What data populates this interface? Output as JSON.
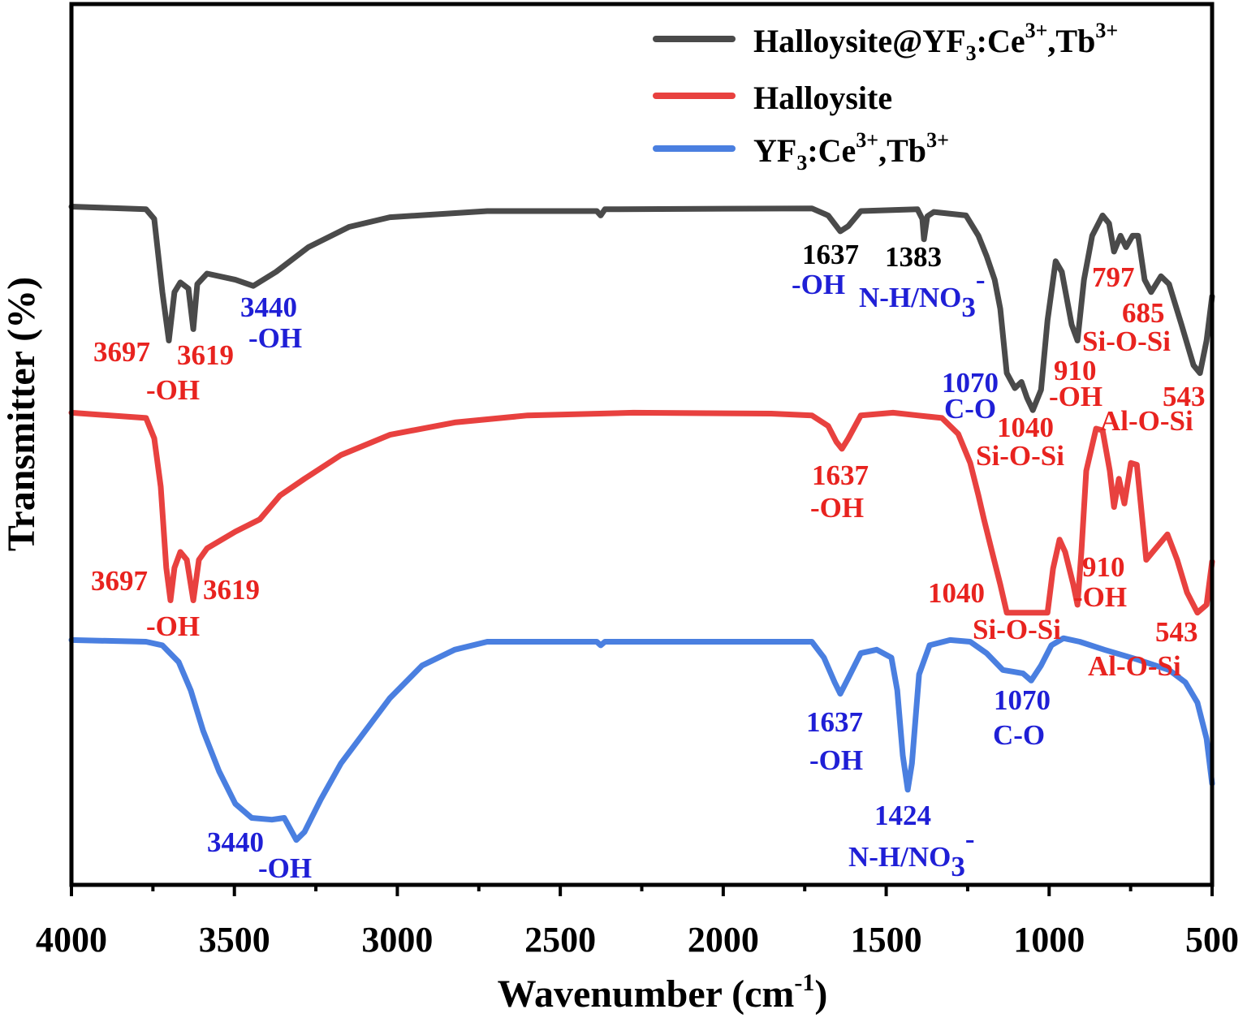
{
  "chart_data": {
    "type": "line",
    "title": "",
    "xlabel_parts": [
      "Wavenumber (cm",
      "-1",
      ")"
    ],
    "ylabel": "Transmitter (%)",
    "xlim": [
      4000,
      500
    ],
    "x_reversed": true,
    "ylim": [
      0,
      100
    ],
    "y_ticks_shown": false,
    "grid": false,
    "legend_position": "top-right",
    "x_ticks": [
      4000,
      3500,
      3000,
      2500,
      2000,
      1500,
      1000,
      500
    ],
    "x_tick_labels": [
      "4000",
      "3500",
      "3000",
      "2500",
      "2000",
      "1500",
      "1000",
      "500"
    ],
    "series": [
      {
        "name_parts": [
          "Halloysite@YF",
          "3",
          ":Ce",
          "3+",
          ",Tb",
          "3+"
        ],
        "color": "#4a4a4a",
        "points": [
          [
            4000,
            77.0
          ],
          [
            3771,
            76.7
          ],
          [
            3746,
            75.6
          ],
          [
            3721,
            67.3
          ],
          [
            3701,
            61.8
          ],
          [
            3684,
            67.3
          ],
          [
            3666,
            68.4
          ],
          [
            3641,
            67.7
          ],
          [
            3626,
            63.1
          ],
          [
            3614,
            68.2
          ],
          [
            3584,
            69.4
          ],
          [
            3497,
            68.7
          ],
          [
            3442,
            68.0
          ],
          [
            3372,
            69.6
          ],
          [
            3273,
            72.4
          ],
          [
            3148,
            74.7
          ],
          [
            3023,
            75.8
          ],
          [
            2724,
            76.5
          ],
          [
            2388,
            76.5
          ],
          [
            2376,
            76.0
          ],
          [
            2363,
            76.7
          ],
          [
            1728,
            76.8
          ],
          [
            1678,
            76.0
          ],
          [
            1641,
            74.2
          ],
          [
            1616,
            74.8
          ],
          [
            1578,
            76.5
          ],
          [
            1404,
            76.7
          ],
          [
            1389,
            75.6
          ],
          [
            1384,
            73.3
          ],
          [
            1374,
            75.9
          ],
          [
            1354,
            76.4
          ],
          [
            1255,
            76.0
          ],
          [
            1217,
            73.7
          ],
          [
            1192,
            71.4
          ],
          [
            1167,
            68.7
          ],
          [
            1150,
            65.4
          ],
          [
            1130,
            58.1
          ],
          [
            1105,
            56.4
          ],
          [
            1085,
            57.1
          ],
          [
            1068,
            55.3
          ],
          [
            1050,
            53.9
          ],
          [
            1025,
            56.2
          ],
          [
            1005,
            64.1
          ],
          [
            980,
            70.8
          ],
          [
            961,
            69.6
          ],
          [
            931,
            63.6
          ],
          [
            913,
            61.8
          ],
          [
            893,
            68.7
          ],
          [
            868,
            73.7
          ],
          [
            836,
            76.0
          ],
          [
            816,
            75.1
          ],
          [
            801,
            71.9
          ],
          [
            781,
            73.7
          ],
          [
            764,
            72.4
          ],
          [
            744,
            73.7
          ],
          [
            727,
            73.7
          ],
          [
            707,
            68.7
          ],
          [
            687,
            67.3
          ],
          [
            657,
            69.1
          ],
          [
            632,
            68.2
          ],
          [
            594,
            63.6
          ],
          [
            557,
            59.0
          ],
          [
            537,
            58.1
          ],
          [
            517,
            61.8
          ],
          [
            500,
            66.8
          ]
        ]
      },
      {
        "name_parts": [
          "Halloysite",
          "",
          "",
          "",
          "",
          ""
        ],
        "color": "#e8413f",
        "points": [
          [
            4000,
            53.6
          ],
          [
            3771,
            53.0
          ],
          [
            3746,
            50.7
          ],
          [
            3726,
            45.2
          ],
          [
            3709,
            36.0
          ],
          [
            3696,
            32.3
          ],
          [
            3684,
            36.0
          ],
          [
            3666,
            37.8
          ],
          [
            3646,
            36.9
          ],
          [
            3626,
            32.3
          ],
          [
            3609,
            36.9
          ],
          [
            3584,
            38.2
          ],
          [
            3497,
            40.1
          ],
          [
            3422,
            41.5
          ],
          [
            3360,
            44.2
          ],
          [
            3285,
            46.1
          ],
          [
            3173,
            48.8
          ],
          [
            3023,
            51.1
          ],
          [
            2824,
            52.5
          ],
          [
            2600,
            53.3
          ],
          [
            2276,
            53.6
          ],
          [
            1853,
            53.5
          ],
          [
            1728,
            53.3
          ],
          [
            1678,
            52.1
          ],
          [
            1653,
            50.3
          ],
          [
            1636,
            49.5
          ],
          [
            1616,
            50.7
          ],
          [
            1578,
            53.3
          ],
          [
            1479,
            53.6
          ],
          [
            1404,
            53.3
          ],
          [
            1329,
            53.0
          ],
          [
            1279,
            51.2
          ],
          [
            1242,
            47.9
          ],
          [
            1217,
            44.2
          ],
          [
            1200,
            41.5
          ],
          [
            1175,
            37.8
          ],
          [
            1150,
            34.1
          ],
          [
            1130,
            30.9
          ],
          [
            1005,
            30.9
          ],
          [
            988,
            35.9
          ],
          [
            968,
            39.2
          ],
          [
            951,
            37.8
          ],
          [
            926,
            34.1
          ],
          [
            913,
            31.8
          ],
          [
            901,
            37.8
          ],
          [
            886,
            47.0
          ],
          [
            856,
            51.8
          ],
          [
            836,
            51.6
          ],
          [
            814,
            47.0
          ],
          [
            801,
            42.9
          ],
          [
            786,
            46.1
          ],
          [
            769,
            43.3
          ],
          [
            749,
            47.9
          ],
          [
            731,
            47.7
          ],
          [
            719,
            43.3
          ],
          [
            702,
            36.9
          ],
          [
            682,
            37.8
          ],
          [
            637,
            39.8
          ],
          [
            607,
            36.9
          ],
          [
            577,
            33.2
          ],
          [
            545,
            30.9
          ],
          [
            517,
            31.8
          ],
          [
            500,
            36.7
          ]
        ]
      },
      {
        "name_parts": [
          "YF",
          "3",
          ":Ce",
          "3+",
          ",Tb",
          "3+"
        ],
        "color": "#4a7fe0",
        "points": [
          [
            4000,
            27.8
          ],
          [
            3771,
            27.6
          ],
          [
            3721,
            27.2
          ],
          [
            3671,
            25.3
          ],
          [
            3634,
            22.1
          ],
          [
            3596,
            17.5
          ],
          [
            3547,
            12.9
          ],
          [
            3497,
            9.2
          ],
          [
            3447,
            7.6
          ],
          [
            3385,
            7.4
          ],
          [
            3347,
            7.6
          ],
          [
            3310,
            5.1
          ],
          [
            3285,
            6.0
          ],
          [
            3235,
            9.7
          ],
          [
            3173,
            13.8
          ],
          [
            3098,
            17.5
          ],
          [
            3023,
            21.2
          ],
          [
            2924,
            24.9
          ],
          [
            2824,
            26.7
          ],
          [
            2724,
            27.6
          ],
          [
            2388,
            27.6
          ],
          [
            2376,
            27.2
          ],
          [
            2363,
            27.6
          ],
          [
            1728,
            27.6
          ],
          [
            1691,
            25.8
          ],
          [
            1658,
            23.0
          ],
          [
            1641,
            21.7
          ],
          [
            1616,
            23.5
          ],
          [
            1578,
            26.3
          ],
          [
            1529,
            26.7
          ],
          [
            1484,
            25.8
          ],
          [
            1466,
            22.1
          ],
          [
            1449,
            14.7
          ],
          [
            1434,
            10.8
          ],
          [
            1421,
            13.8
          ],
          [
            1399,
            23.9
          ],
          [
            1367,
            27.2
          ],
          [
            1304,
            27.8
          ],
          [
            1242,
            27.6
          ],
          [
            1192,
            26.3
          ],
          [
            1142,
            24.4
          ],
          [
            1110,
            24.2
          ],
          [
            1080,
            24.0
          ],
          [
            1055,
            23.2
          ],
          [
            1025,
            24.9
          ],
          [
            993,
            27.2
          ],
          [
            956,
            28.0
          ],
          [
            906,
            27.6
          ],
          [
            831,
            26.7
          ],
          [
            731,
            25.6
          ],
          [
            632,
            24.4
          ],
          [
            582,
            23.0
          ],
          [
            545,
            20.7
          ],
          [
            517,
            16.6
          ],
          [
            500,
            11.5
          ]
        ]
      }
    ],
    "annotation_colors": {
      "red": "#e8231f",
      "blue": "#1f1fd6",
      "black": "#000000"
    },
    "annotations": [
      {
        "text": "1637",
        "color": "black"
      },
      {
        "text": "1383",
        "color": "black"
      },
      {
        "text": "-OH",
        "color": "blue"
      },
      {
        "text": "N-H/NO",
        "sub": "3",
        "sup": "-",
        "color": "blue"
      },
      {
        "text": "3440",
        "color": "blue"
      },
      {
        "text": "-OH",
        "color": "blue"
      },
      {
        "text": "3697",
        "color": "red"
      },
      {
        "text": "3619",
        "color": "red"
      },
      {
        "text": "-OH",
        "color": "red"
      },
      {
        "text": "797",
        "color": "red"
      },
      {
        "text": "685",
        "color": "red"
      },
      {
        "text": "Si-O-Si",
        "color": "red"
      },
      {
        "text": "910",
        "color": "red"
      },
      {
        "text": "-OH",
        "color": "red"
      },
      {
        "text": "1070",
        "color": "blue"
      },
      {
        "text": "C-O",
        "color": "blue"
      },
      {
        "text": "1040",
        "color": "red"
      },
      {
        "text": "Si-O-Si",
        "color": "red"
      },
      {
        "text": "543",
        "color": "red"
      },
      {
        "text": "Al-O-Si",
        "color": "red"
      },
      {
        "text": "1637",
        "color": "red"
      },
      {
        "text": "-OH",
        "color": "red"
      },
      {
        "text": "3697",
        "color": "red"
      },
      {
        "text": "3619",
        "color": "red"
      },
      {
        "text": "-OH",
        "color": "red"
      },
      {
        "text": "1040",
        "color": "red"
      },
      {
        "text": "Si-O-Si",
        "color": "red"
      },
      {
        "text": "910",
        "color": "red"
      },
      {
        "text": "-OH",
        "color": "red"
      },
      {
        "text": "543",
        "color": "red"
      },
      {
        "text": "Al-O-Si",
        "color": "red"
      },
      {
        "text": "1637",
        "color": "blue"
      },
      {
        "text": "-OH",
        "color": "blue"
      },
      {
        "text": "1070",
        "color": "blue"
      },
      {
        "text": "C-O",
        "color": "blue"
      },
      {
        "text": "3440",
        "color": "blue"
      },
      {
        "text": "-OH",
        "color": "blue"
      },
      {
        "text": "1424",
        "color": "blue"
      },
      {
        "text": "N-H/NO",
        "sub": "3",
        "sup": "-",
        "color": "blue"
      }
    ]
  }
}
